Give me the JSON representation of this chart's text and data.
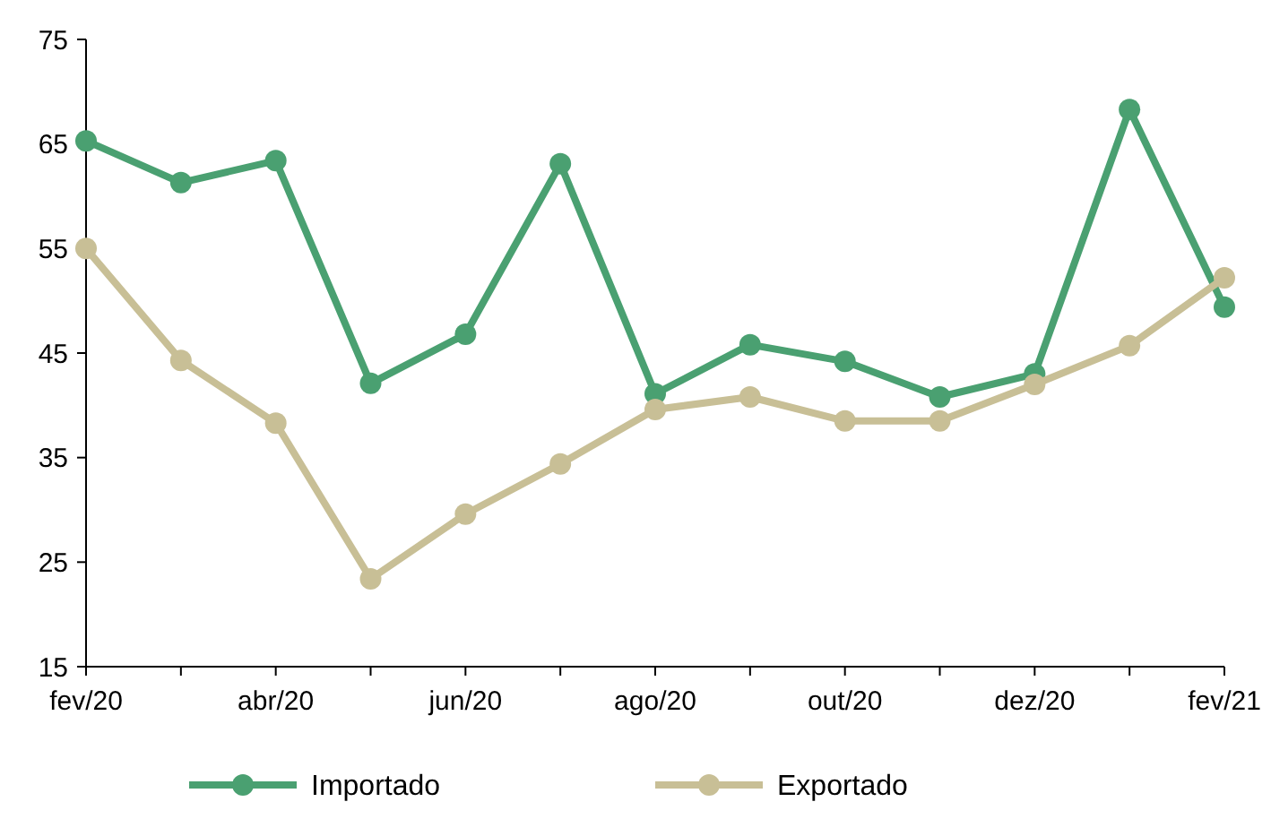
{
  "chart_data": {
    "type": "line",
    "categories": [
      "fev/20",
      null,
      "abr/20",
      null,
      "jun/20",
      null,
      "ago/20",
      null,
      "out/20",
      null,
      "dez/20",
      null,
      "fev/21"
    ],
    "series": [
      {
        "name": "Importado",
        "color": "#4aa071",
        "values": [
          65.3,
          61.3,
          63.4,
          42.1,
          46.8,
          63.1,
          41.1,
          45.8,
          44.2,
          40.8,
          43,
          68.3,
          49.4
        ]
      },
      {
        "name": "Exportado",
        "color": "#c8bf96",
        "values": [
          55,
          44.3,
          38.3,
          23.4,
          29.6,
          34.4,
          39.6,
          40.8,
          38.5,
          38.5,
          42,
          45.7,
          52.2
        ]
      }
    ],
    "ylim": [
      15,
      75
    ],
    "yticks": [
      15,
      25,
      35,
      45,
      55,
      65,
      75
    ],
    "grid": false,
    "legend": "bottom",
    "marker": "circle",
    "line_style": "solid"
  }
}
